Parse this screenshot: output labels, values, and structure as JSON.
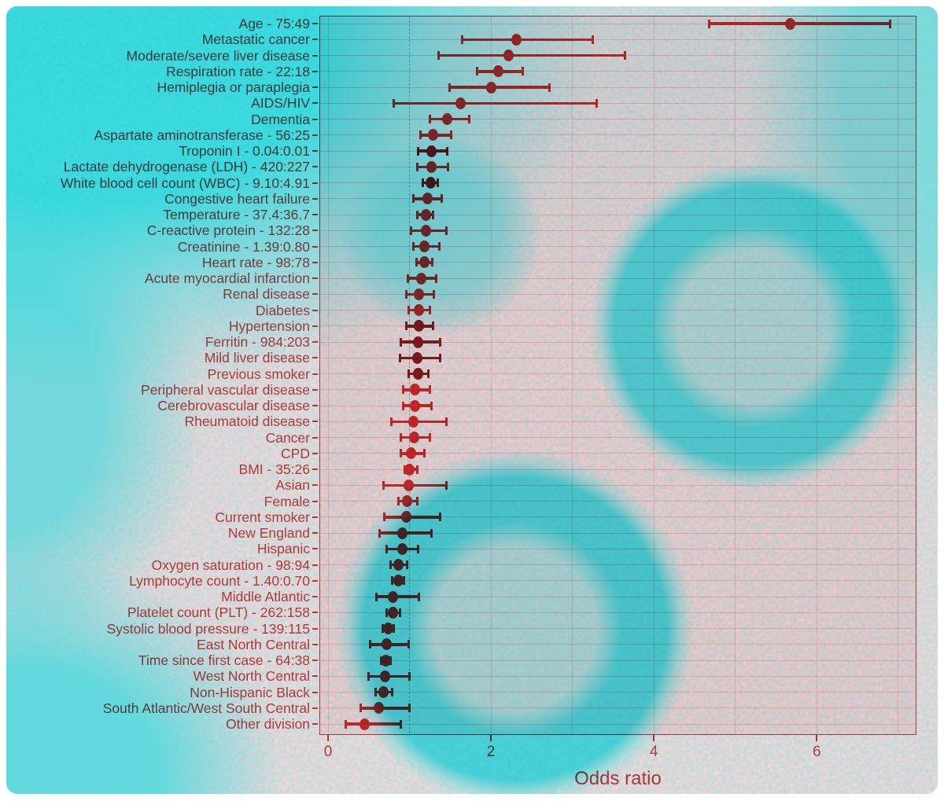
{
  "figure": {
    "x_axis_title": "Odds ratio"
  },
  "palette": {
    "bright": "#dd2c2c",
    "dark": "#8e1d20",
    "label_text": "#c94545",
    "axis_text": "#d04545",
    "grid": "rgba(225,125,125,0.38)",
    "vgrid": "rgba(225,130,130,0.33)",
    "ref_line": "#7a7a7a",
    "panel_border": "#b8474c",
    "background_pink": "#f6d2d4",
    "background_cyan": "#25d6da"
  },
  "chart_data": {
    "type": "scatter",
    "subtype": "forest-plot",
    "xlabel": "Odds ratio",
    "x_ticks": [
      0,
      2,
      4,
      6
    ],
    "xlim": [
      0,
      7.2
    ],
    "reference_line_x": 1,
    "grid": true,
    "rows": [
      {
        "label": "Age - 75:49",
        "or": 5.67,
        "ci_low": 4.68,
        "ci_high": 6.9,
        "shade": "bright"
      },
      {
        "label": "Metastatic cancer",
        "or": 2.31,
        "ci_low": 1.65,
        "ci_high": 3.25,
        "shade": "bright"
      },
      {
        "label": "Moderate/severe liver disease",
        "or": 2.22,
        "ci_low": 1.36,
        "ci_high": 3.65,
        "shade": "bright"
      },
      {
        "label": "Respiration rate - 22:18",
        "or": 2.09,
        "ci_low": 1.83,
        "ci_high": 2.39,
        "shade": "bright"
      },
      {
        "label": "Hemiplegia or paraplegia",
        "or": 2.0,
        "ci_low": 1.49,
        "ci_high": 2.72,
        "shade": "bright"
      },
      {
        "label": "AIDS/HIV",
        "or": 1.63,
        "ci_low": 0.81,
        "ci_high": 3.3,
        "shade": "bright"
      },
      {
        "label": "Dementia",
        "or": 1.46,
        "ci_low": 1.25,
        "ci_high": 1.73,
        "shade": "bright"
      },
      {
        "label": "Aspartate aminotransferase - 56:25",
        "or": 1.29,
        "ci_low": 1.13,
        "ci_high": 1.51,
        "shade": "bright"
      },
      {
        "label": "Troponin I - 0.04:0.01",
        "or": 1.27,
        "ci_low": 1.11,
        "ci_high": 1.46,
        "shade": "dark"
      },
      {
        "label": "Lactate dehydrogenase (LDH) - 420:227",
        "or": 1.27,
        "ci_low": 1.1,
        "ci_high": 1.47,
        "shade": "bright"
      },
      {
        "label": "White blood cell count (WBC) - 9.10:4.91",
        "or": 1.26,
        "ci_low": 1.16,
        "ci_high": 1.35,
        "shade": "dark"
      },
      {
        "label": "Congestive heart failure",
        "or": 1.22,
        "ci_low": 1.05,
        "ci_high": 1.4,
        "shade": "bright"
      },
      {
        "label": "Temperature - 37.4:36.7",
        "or": 1.2,
        "ci_low": 1.1,
        "ci_high": 1.29,
        "shade": "bright"
      },
      {
        "label": "C-reactive protein - 132:28",
        "or": 1.2,
        "ci_low": 1.02,
        "ci_high": 1.45,
        "shade": "bright"
      },
      {
        "label": "Creatinine - 1.39:0.80",
        "or": 1.18,
        "ci_low": 1.05,
        "ci_high": 1.37,
        "shade": "bright"
      },
      {
        "label": "Heart rate - 98:78",
        "or": 1.18,
        "ci_low": 1.09,
        "ci_high": 1.28,
        "shade": "bright"
      },
      {
        "label": "Acute myocardial infarction",
        "or": 1.14,
        "ci_low": 0.98,
        "ci_high": 1.33,
        "shade": "bright"
      },
      {
        "label": "Renal disease",
        "or": 1.12,
        "ci_low": 0.96,
        "ci_high": 1.3,
        "shade": "bright"
      },
      {
        "label": "Diabetes",
        "or": 1.12,
        "ci_low": 0.99,
        "ci_high": 1.25,
        "shade": "bright"
      },
      {
        "label": "Hypertension",
        "or": 1.12,
        "ci_low": 0.96,
        "ci_high": 1.29,
        "shade": "dark"
      },
      {
        "label": "Ferritin - 984:203",
        "or": 1.11,
        "ci_low": 0.89,
        "ci_high": 1.38,
        "shade": "dark"
      },
      {
        "label": "Mild liver disease",
        "or": 1.1,
        "ci_low": 0.88,
        "ci_high": 1.38,
        "shade": "dark"
      },
      {
        "label": "Previous smoker",
        "or": 1.11,
        "ci_low": 0.99,
        "ci_high": 1.23,
        "shade": "dark"
      },
      {
        "label": "Peripheral vascular disease",
        "or": 1.07,
        "ci_low": 0.92,
        "ci_high": 1.25,
        "shade": "bright"
      },
      {
        "label": "Cerebrovascular disease",
        "or": 1.07,
        "ci_low": 0.92,
        "ci_high": 1.27,
        "shade": "bright"
      },
      {
        "label": "Rheumatoid disease",
        "or": 1.05,
        "ci_low": 0.78,
        "ci_high": 1.45,
        "shade": "bright"
      },
      {
        "label": "Cancer",
        "or": 1.06,
        "ci_low": 0.89,
        "ci_high": 1.25,
        "shade": "bright"
      },
      {
        "label": "CPD",
        "or": 1.02,
        "ci_low": 0.89,
        "ci_high": 1.18,
        "shade": "bright"
      },
      {
        "label": "BMI - 35:26",
        "or": 1.0,
        "ci_low": 0.94,
        "ci_high": 1.1,
        "shade": "bright"
      },
      {
        "label": "Asian",
        "or": 0.99,
        "ci_low": 0.68,
        "ci_high": 1.45,
        "shade": "bright"
      },
      {
        "label": "Female",
        "or": 0.97,
        "ci_low": 0.86,
        "ci_high": 1.1,
        "shade": "bright"
      },
      {
        "label": "Current smoker",
        "or": 0.96,
        "ci_low": 0.69,
        "ci_high": 1.38,
        "shade": "bright"
      },
      {
        "label": "New England",
        "or": 0.91,
        "ci_low": 0.63,
        "ci_high": 1.27,
        "shade": "bright"
      },
      {
        "label": "Hispanic",
        "or": 0.91,
        "ci_low": 0.72,
        "ci_high": 1.11,
        "shade": "bright"
      },
      {
        "label": "Oxygen saturation - 98:94",
        "or": 0.86,
        "ci_low": 0.77,
        "ci_high": 0.97,
        "shade": "bright"
      },
      {
        "label": "Lymphocyte count - 1.40:0.70",
        "or": 0.86,
        "ci_low": 0.79,
        "ci_high": 0.93,
        "shade": "bright"
      },
      {
        "label": "Middle Atlantic",
        "or": 0.8,
        "ci_low": 0.59,
        "ci_high": 1.12,
        "shade": "bright"
      },
      {
        "label": "Platelet count (PLT) - 262:158",
        "or": 0.8,
        "ci_low": 0.72,
        "ci_high": 0.88,
        "shade": "bright"
      },
      {
        "label": "Systolic blood pressure - 139:115",
        "or": 0.74,
        "ci_low": 0.67,
        "ci_high": 0.81,
        "shade": "bright"
      },
      {
        "label": "East North Central",
        "or": 0.72,
        "ci_low": 0.52,
        "ci_high": 0.99,
        "shade": "bright"
      },
      {
        "label": "Time since first case - 64:38",
        "or": 0.71,
        "ci_low": 0.65,
        "ci_high": 0.77,
        "shade": "bright"
      },
      {
        "label": "West North Central",
        "or": 0.7,
        "ci_low": 0.5,
        "ci_high": 1.0,
        "shade": "bright"
      },
      {
        "label": "Non-Hispanic Black",
        "or": 0.68,
        "ci_low": 0.58,
        "ci_high": 0.79,
        "shade": "bright"
      },
      {
        "label": "South Atlantic/West South Central",
        "or": 0.62,
        "ci_low": 0.4,
        "ci_high": 1.0,
        "shade": "bright"
      },
      {
        "label": "Other division",
        "or": 0.45,
        "ci_low": 0.22,
        "ci_high": 0.89,
        "shade": "bright"
      }
    ]
  }
}
